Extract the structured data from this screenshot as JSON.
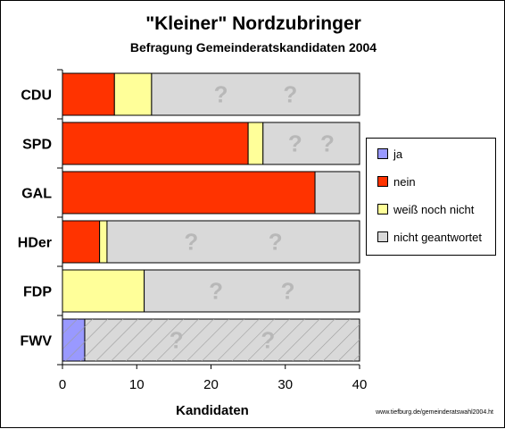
{
  "chart_data": {
    "type": "bar",
    "orientation": "horizontal",
    "stacked": true,
    "title": "\"Kleiner\" Nordzubringer",
    "subtitle": "Befragung Gemeinderatskandidaten 2004",
    "xlabel": "Kandidaten",
    "ylabel": "",
    "xlim": [
      0,
      40
    ],
    "xticks": [
      "0",
      "10",
      "20",
      "30",
      "40"
    ],
    "categories": [
      "CDU",
      "SPD",
      "GAL",
      "HDer",
      "FDP",
      "FWV"
    ],
    "series": [
      {
        "name": "ja",
        "color": "#9999ff",
        "values": [
          0,
          0,
          0,
          0,
          0,
          3
        ]
      },
      {
        "name": "nein",
        "color": "#ff3300",
        "values": [
          7,
          25,
          34,
          5,
          0,
          0
        ]
      },
      {
        "name": "weiß noch nicht",
        "color": "#ffff99",
        "values": [
          5,
          2,
          0,
          1,
          11,
          0
        ]
      },
      {
        "name": "nicht geantwortet",
        "color": "#d9d9d9",
        "values": [
          28,
          13,
          6,
          34,
          29,
          37
        ]
      }
    ],
    "legend_position": "right",
    "grid": false,
    "annotations": [
      "?"
    ]
  },
  "footer": {
    "source": "www.tiefburg.de/gemeinderatswahl2004.ht"
  }
}
